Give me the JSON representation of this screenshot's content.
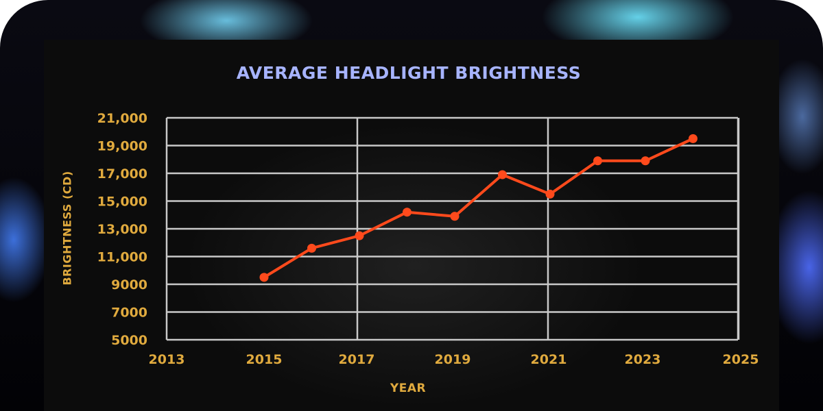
{
  "chart_data": {
    "type": "line",
    "title": "AVERAGE HEADLIGHT BRIGHTNESS",
    "xlabel": "YEAR",
    "ylabel": "BRIGHTNESS (CD)",
    "x": [
      2015,
      2016,
      2017,
      2018,
      2019,
      2020,
      2021,
      2022,
      2023,
      2024
    ],
    "series": [
      {
        "values": [
          9500,
          11600,
          12500,
          14200,
          13900,
          16900,
          15500,
          17900,
          17900,
          19500
        ]
      }
    ],
    "xlim": [
      2013,
      2025
    ],
    "ylim": [
      5000,
      21000
    ],
    "x_ticks": [
      "2013",
      "2015",
      "2017",
      "2019",
      "2021",
      "2023",
      "2025"
    ],
    "y_ticks": [
      "21,000",
      "19,000",
      "17,000",
      "15,000",
      "13,000",
      "11,000",
      "9000",
      "7000",
      "5000"
    ],
    "grid": true,
    "colors": {
      "line": "#ff4a1c",
      "grid": "#c9c9c9",
      "axis_text": "#e0aa3e",
      "title": "#a7b4ff"
    }
  }
}
